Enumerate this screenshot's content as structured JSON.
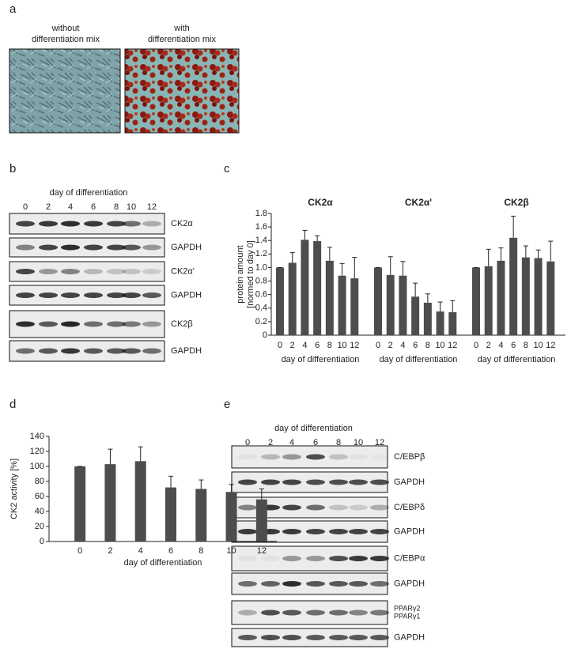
{
  "panel_a": {
    "label": "a",
    "captions": [
      [
        "without",
        "differentiation mix"
      ],
      [
        "with",
        "differentiation mix"
      ]
    ]
  },
  "panel_b": {
    "label": "b",
    "xlabel": "day of differentiation",
    "lanes": [
      "0",
      "2",
      "4",
      "6",
      "8",
      "10",
      "12"
    ],
    "blots": [
      [
        "CK2α"
      ],
      [
        "GAPDH"
      ],
      [
        "CK2α'"
      ],
      [
        "GAPDH"
      ],
      [
        "CK2β"
      ],
      [
        "GAPDH"
      ]
    ]
  },
  "chart_data": [
    {
      "type": "bar",
      "label": "c",
      "ylabel": [
        "protein amount",
        "[normed to day 0]"
      ],
      "color": "#4d4d4d",
      "ylim": [
        0,
        1.8
      ],
      "yticks": [
        0,
        0.2,
        0.4,
        0.6,
        0.8,
        {
          "value": 1,
          "label": "1.0"
        },
        1.2,
        1.4,
        1.6,
        1.8
      ],
      "groups": [
        {
          "title": "CK2α",
          "xlabel": "day of differentiation",
          "categories": [
            "0",
            "2",
            "4",
            "6",
            "8",
            "10",
            "12"
          ],
          "values": [
            1.0,
            1.07,
            1.41,
            1.39,
            1.1,
            0.88,
            0.84
          ],
          "errors": [
            0,
            0.15,
            0.14,
            0.08,
            0.2,
            0.18,
            0.31
          ]
        },
        {
          "title": "CK2α'",
          "xlabel": "day of differentiation",
          "categories": [
            "0",
            "2",
            "4",
            "6",
            "8",
            "10",
            "12"
          ],
          "values": [
            1.0,
            0.89,
            0.88,
            0.57,
            0.48,
            0.35,
            0.34
          ],
          "errors": [
            0,
            0.27,
            0.21,
            0.2,
            0.13,
            0.14,
            0.17
          ]
        },
        {
          "title": "CK2β",
          "xlabel": "day of differentiation",
          "categories": [
            "0",
            "2",
            "4",
            "6",
            "8",
            "10",
            "12"
          ],
          "values": [
            1.0,
            1.02,
            1.1,
            1.44,
            1.15,
            1.14,
            1.09
          ],
          "errors": [
            0,
            0.25,
            0.19,
            0.32,
            0.17,
            0.12,
            0.3
          ]
        }
      ]
    },
    {
      "type": "bar",
      "label": "d",
      "ylabel": "CK2 activity [%]",
      "xlabel": "day of differentiation",
      "color": "#4d4d4d",
      "categories": [
        "0",
        "2",
        "4",
        "6",
        "8",
        "10",
        "12"
      ],
      "values": [
        100,
        103,
        107,
        72,
        70,
        66,
        56
      ],
      "errors": [
        0,
        20,
        19,
        15,
        12,
        10,
        14
      ],
      "ylim": [
        0,
        140
      ],
      "yticks": [
        0,
        20,
        40,
        60,
        80,
        100,
        120,
        140
      ]
    }
  ],
  "panel_e": {
    "label": "e",
    "xlabel": "day of differentiation",
    "lanes": [
      "0",
      "2",
      "4",
      "6",
      "8",
      "10",
      "12"
    ],
    "blots": [
      [
        "C/EBPβ"
      ],
      [
        "GAPDH"
      ],
      [
        "C/EBPδ"
      ],
      [
        "GAPDH"
      ],
      [
        "C/EBPα"
      ],
      [
        "GAPDH"
      ],
      [
        "PPARγ2",
        "PPARγ1"
      ],
      [
        "GAPDH"
      ]
    ]
  }
}
